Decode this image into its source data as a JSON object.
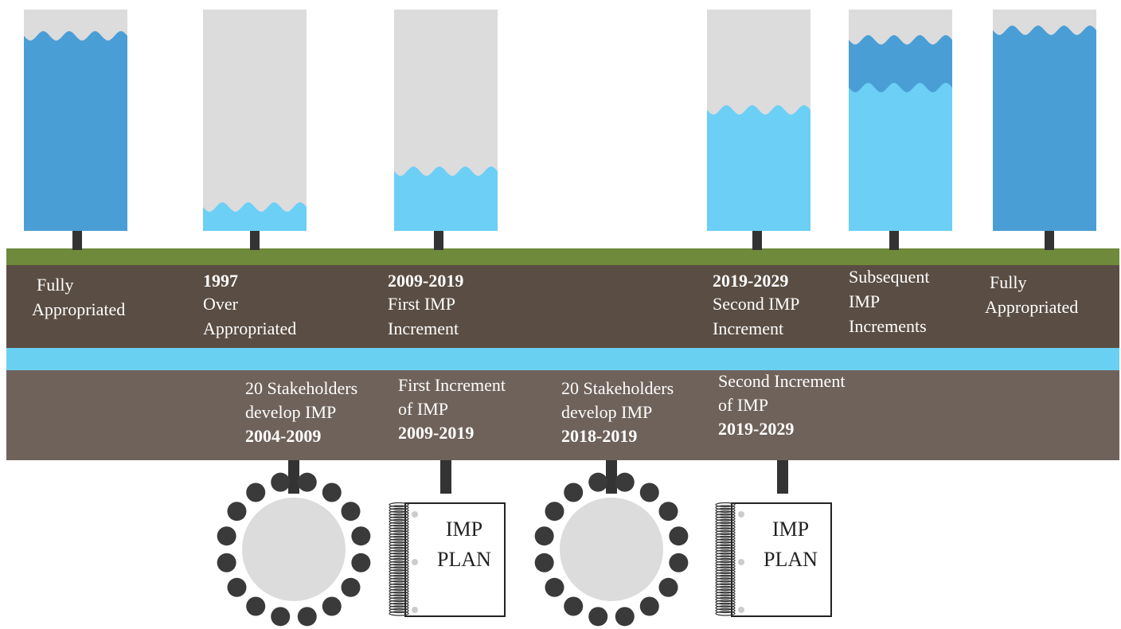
{
  "stages": [
    {
      "lines": [
        "Fully",
        "Appropriated"
      ]
    },
    {
      "year": "1997",
      "lines": [
        "Over",
        "Appropriated"
      ]
    },
    {
      "year": "2009-2019",
      "lines": [
        "First IMP",
        "Increment"
      ]
    },
    {
      "year": "2019-2029",
      "lines": [
        "Second IMP",
        "Increment"
      ]
    },
    {
      "lines": [
        "Subsequent",
        "IMP",
        "Increments"
      ]
    },
    {
      "lines": [
        "Fully",
        "Appropriated"
      ]
    }
  ],
  "milestones": [
    {
      "lines": [
        "20 Stakeholders",
        "develop IMP"
      ],
      "years": "2004-2009"
    },
    {
      "lines": [
        "First Increment",
        "of IMP"
      ],
      "years": "2009-2019"
    },
    {
      "lines": [
        "20 Stakeholders",
        "develop IMP"
      ],
      "years": "2018-2019"
    },
    {
      "lines": [
        "Second Increment",
        "of IMP"
      ],
      "years": "2019-2029"
    }
  ],
  "plans": [
    {
      "lines": [
        "IMP",
        "PLAN"
      ]
    },
    {
      "lines": [
        "IMP",
        "PLAN"
      ]
    }
  ]
}
